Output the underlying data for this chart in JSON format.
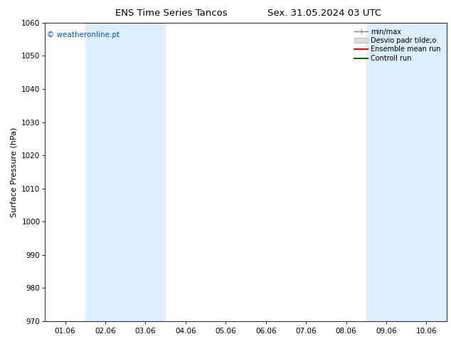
{
  "title_left": "ENS Time Series Tancos",
  "title_right": "Sex. 31.05.2024 03 UTC",
  "ylabel": "Surface Pressure (hPa)",
  "ylim": [
    970,
    1060
  ],
  "yticks": [
    970,
    980,
    990,
    1000,
    1010,
    1020,
    1030,
    1040,
    1050,
    1060
  ],
  "xtick_labels": [
    "01.06",
    "02.06",
    "03.06",
    "04.06",
    "05.06",
    "06.06",
    "07.06",
    "08.06",
    "09.06",
    "10.06"
  ],
  "n_xticks": 10,
  "band_color": "#ddeeff",
  "background_color": "#ffffff",
  "watermark": "© weatheronline.pt",
  "watermark_color": "#0055cc",
  "legend_labels": [
    "min/max",
    "Desvio padr tilde;o",
    "Ensemble mean run",
    "Controll run"
  ],
  "legend_colors_line": [
    "#888888",
    "#bbbbbb",
    "#ff0000",
    "#007700"
  ],
  "title_fontsize": 9.5,
  "axis_fontsize": 8,
  "tick_fontsize": 7.5,
  "watermark_fontsize": 7.5,
  "legend_fontsize": 7
}
